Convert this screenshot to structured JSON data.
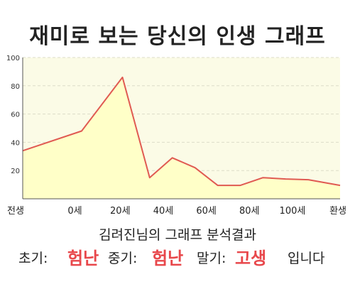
{
  "title": "재미로 보는 당신의 인생 그래프",
  "subtitle": "김려진님의 그래프 분석결과",
  "result": {
    "early_label": "초기:",
    "early_value": "험난",
    "middle_label": "중기:",
    "middle_value": "험난",
    "late_label": "말기:",
    "late_value": "고생",
    "ending": "입니다",
    "value_color": "#e8474b"
  },
  "colors": {
    "line": "#e05a52",
    "fill": "#ffffc8",
    "plot_background": "#fbfbe6",
    "grid": "#dcdcc8",
    "axis": "#555555"
  },
  "chart_data": {
    "type": "area",
    "title": "재미로 보는 당신의 인생 그래프",
    "x_tick_labels": [
      "전생",
      "0세",
      "20세",
      "40세",
      "60세",
      "80세",
      "100세",
      "환생"
    ],
    "y_ticks": [
      20,
      40,
      60,
      80,
      100
    ],
    "ylim": [
      0,
      100
    ],
    "grid": true,
    "points": [
      {
        "x": 0,
        "y": 34
      },
      {
        "x": 13,
        "y": 48
      },
      {
        "x": 22,
        "y": 86
      },
      {
        "x": 28,
        "y": 15
      },
      {
        "x": 33,
        "y": 29
      },
      {
        "x": 38,
        "y": 22
      },
      {
        "x": 43,
        "y": 9.5
      },
      {
        "x": 48,
        "y": 9.5
      },
      {
        "x": 53,
        "y": 15
      },
      {
        "x": 58,
        "y": 14
      },
      {
        "x": 63,
        "y": 13.5
      },
      {
        "x": 70,
        "y": 9.5
      }
    ],
    "x_tick_positions": [
      0,
      11.5,
      21.5,
      31,
      40.5,
      50,
      59.5,
      70
    ],
    "xlim": [
      0,
      70
    ]
  }
}
